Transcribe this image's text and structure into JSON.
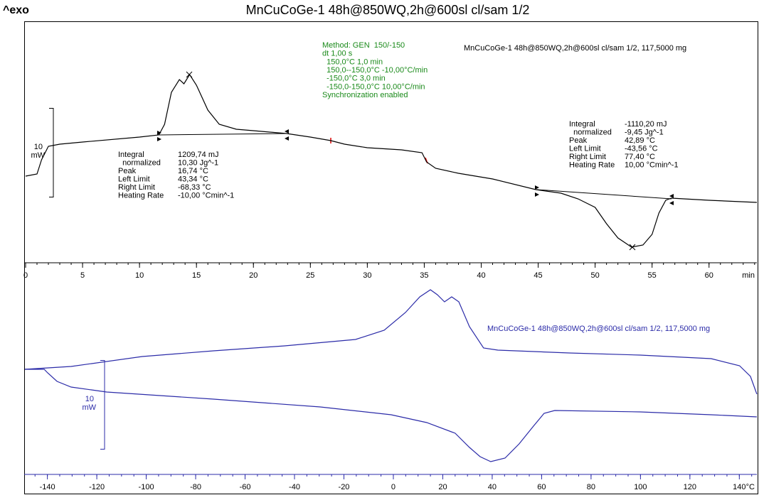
{
  "header": {
    "exo": "^exo",
    "title": "MnCuCoGe-1 48h@850WQ,2h@600sl cl/sam 1/2"
  },
  "chart_data": [
    {
      "type": "line",
      "xlabel": "min",
      "xlim": [
        0,
        64.2
      ],
      "xticks": [
        0,
        5,
        10,
        15,
        20,
        25,
        30,
        35,
        40,
        45,
        50,
        55,
        60
      ],
      "ylim": [
        0,
        26.4
      ],
      "scale_bar": {
        "value": 10,
        "label": "10",
        "unit": "mW"
      },
      "method": [
        "Method: GEN  150/-150",
        "dt 1,00 s",
        "  150,0°C 1,0 min",
        "  150,0--150,0°C -10,00°C/min",
        "  -150,0°C 3,0 min",
        "  -150,0-150,0°C 10,00°C/min",
        "Synchronization enabled"
      ],
      "integrals": [
        [
          [
            "Integral",
            "1209,74 mJ"
          ],
          [
            "  normalized",
            "10,30 Jg^-1"
          ],
          [
            "Peak",
            "16,74 °C"
          ],
          [
            "Left Limit",
            "43,34 °C"
          ],
          [
            "Right Limit",
            "-68,33 °C"
          ],
          [
            "Heating Rate",
            "-10,00 °Cmin^-1"
          ]
        ],
        [
          [
            "Integral",
            "-1110,20 mJ"
          ],
          [
            "  normalized",
            "-9,45 Jg^-1"
          ],
          [
            "Peak",
            "42,89 °C"
          ],
          [
            "Left Limit",
            "-43,56 °C"
          ],
          [
            "Right Limit",
            "77,40 °C"
          ],
          [
            "Heating Rate",
            "10,00 °Cmin^-1"
          ]
        ]
      ],
      "series": [
        {
          "name": "MnCuCoGe-1 48h@850WQ,2h@600sl cl/sam 1/2, 117,5000 mg",
          "color": "#000000",
          "x": [
            0,
            1,
            1.4,
            2,
            3,
            5,
            10,
            11.7,
            12.2,
            12.8,
            13.5,
            13.9,
            14.4,
            15,
            16,
            17,
            18.5,
            20,
            22.9,
            25,
            26.8,
            28,
            30,
            33,
            34.8,
            35.2,
            36,
            38,
            41,
            44.8,
            47,
            48.5,
            50,
            51,
            52,
            53.2,
            54.2,
            55,
            55.6,
            56.2,
            56.7,
            60,
            64.2
          ],
          "values": [
            9.76,
            10,
            11.6,
            13.12,
            13.36,
            13.6,
            14.16,
            14.4,
            15.6,
            19.2,
            20.64,
            20.16,
            21.2,
            20,
            17.2,
            15.6,
            15.04,
            14.88,
            14.56,
            14.16,
            13.76,
            13.36,
            12.96,
            12.72,
            12.4,
            11.36,
            10.64,
            10.08,
            9.44,
            8.24,
            7.84,
            7.2,
            6.24,
            4.4,
            2.8,
            1.76,
            2,
            3.2,
            5.6,
            7.04,
            7.28,
            7.04,
            6.8
          ]
        }
      ]
    },
    {
      "type": "line",
      "xlabel": "°C",
      "xlim": [
        -149.1,
        147.1
      ],
      "xticks": [
        -140,
        -120,
        -100,
        -80,
        -60,
        -40,
        -20,
        0,
        20,
        40,
        60,
        80,
        100,
        120,
        140
      ],
      "ylim": [
        0,
        21.6
      ],
      "scale_bar": {
        "value": 10,
        "label": "10",
        "unit": "mW"
      },
      "series": [
        {
          "name": "MnCuCoGe-1 48h@850WQ,2h@600sl cl/sam 1/2, 117,5000 mg",
          "color": "#2b2ba8",
          "x": [
            -149.1,
            -130.4,
            -101.6,
            -72.8,
            -44.0,
            -15.3,
            -3.7,
            4.9,
            10.7,
            15.0,
            17.8,
            20.7,
            23.6,
            26.5,
            30.8,
            36.5,
            42.3,
            71.1,
            99.9,
            128.6,
            140.1,
            144.5,
            147.1
          ],
          "values": [
            11.6,
            11.92,
            13.04,
            13.68,
            14.24,
            14.96,
            16,
            18,
            19.76,
            20.56,
            20,
            19.2,
            19.76,
            19.2,
            16.4,
            14,
            13.76,
            13.44,
            13.2,
            12.8,
            12,
            10.8,
            8.8
          ]
        },
        {
          "color": "#2b2ba8",
          "x": [
            -149.1,
            -141.3,
            -139.9,
            -136.1,
            -130.4,
            -116.0,
            -72.8,
            -29.6,
            -0.9,
            13.5,
            25.0,
            30.8,
            35.1,
            39.4,
            45.2,
            50.9,
            56.7,
            61.0,
            65.3,
            99.9,
            128.6,
            147.1
          ],
          "values": [
            11.6,
            11.6,
            11.2,
            10.24,
            9.6,
            9.04,
            8.24,
            7.36,
            6.48,
            5.6,
            4.4,
            2.8,
            1.76,
            1.2,
            1.6,
            3.2,
            5.2,
            6.64,
            6.96,
            6.8,
            6.48,
            6.24
          ]
        }
      ]
    }
  ]
}
